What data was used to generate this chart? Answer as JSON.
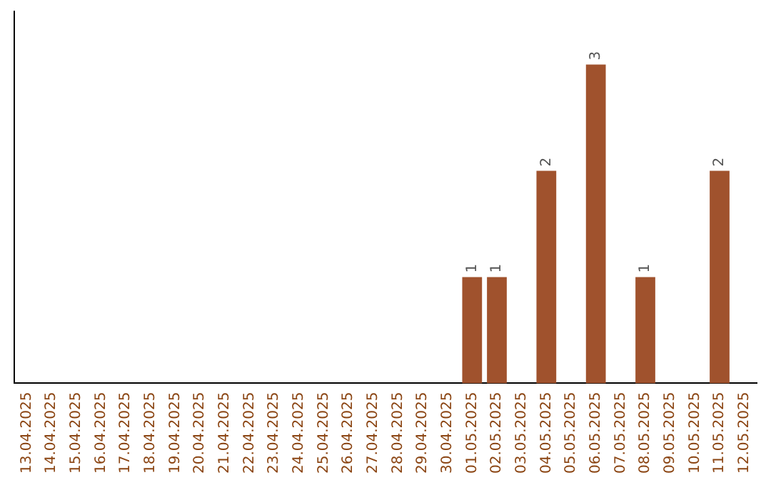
{
  "chart_data": {
    "type": "bar",
    "categories": [
      "13.04.2025",
      "14.04.2025",
      "15.04.2025",
      "16.04.2025",
      "17.04.2025",
      "18.04.2025",
      "19.04.2025",
      "20.04.2025",
      "21.04.2025",
      "22.04.2025",
      "23.04.2025",
      "24.04.2025",
      "25.04.2025",
      "26.04.2025",
      "27.04.2025",
      "28.04.2025",
      "29.04.2025",
      "30.04.2025",
      "01.05.2025",
      "02.05.2025",
      "03.05.2025",
      "04.05.2025",
      "05.05.2025",
      "06.05.2025",
      "07.05.2025",
      "08.05.2025",
      "09.05.2025",
      "10.05.2025",
      "11.05.2025",
      "12.05.2025"
    ],
    "values": [
      null,
      null,
      null,
      null,
      null,
      null,
      null,
      null,
      null,
      null,
      null,
      null,
      null,
      null,
      null,
      null,
      null,
      null,
      1,
      1,
      null,
      2,
      null,
      3,
      null,
      1,
      null,
      null,
      2,
      null
    ],
    "data_labels": true,
    "color": "#a0522d",
    "tick_labels": "x",
    "grid": false,
    "legend": false
  }
}
